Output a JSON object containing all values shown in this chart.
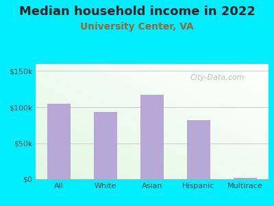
{
  "title": "Median household income in 2022",
  "subtitle": "University Center, VA",
  "categories": [
    "All",
    "White",
    "Asian",
    "Hispanic",
    "Multirace"
  ],
  "values": [
    105000,
    93000,
    117000,
    82000,
    2000
  ],
  "bar_color": "#b8a8d8",
  "title_fontsize": 13,
  "title_color": "#222222",
  "subtitle_fontsize": 10,
  "subtitle_color": "#996633",
  "background_outer": "#00eeff",
  "yticks": [
    0,
    50000,
    100000,
    150000
  ],
  "ytick_labels": [
    "$0",
    "$50k",
    "$100k",
    "$150k"
  ],
  "watermark": "City-Data.com",
  "ylim": [
    0,
    160000
  ],
  "tick_fontsize": 8,
  "grid_color": "#cccccc"
}
